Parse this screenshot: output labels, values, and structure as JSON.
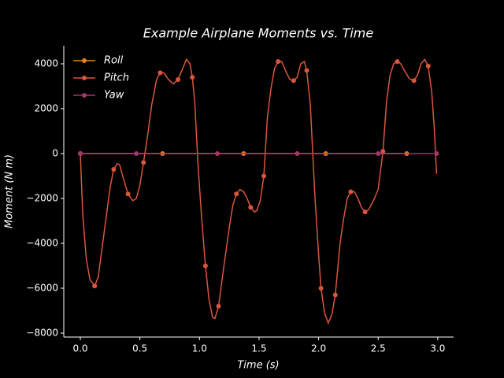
{
  "chart_data": {
    "type": "line",
    "title": "Example Airplane Moments vs. Time",
    "x_label": "Time (s)",
    "y_label": "Moment (N m)",
    "xlim": [
      -0.139,
      3.133
    ],
    "ylim": [
      -8175,
      4807
    ],
    "xticks": [
      {
        "value": 0,
        "label": "0.0"
      },
      {
        "value": 0.5,
        "label": "0.5"
      },
      {
        "value": 1,
        "label": "1.0"
      },
      {
        "value": 1.5,
        "label": "1.5"
      },
      {
        "value": 2,
        "label": "2.0"
      },
      {
        "value": 2.5,
        "label": "2.5"
      },
      {
        "value": 3,
        "label": "3.0"
      }
    ],
    "yticks": [
      {
        "value": -8000,
        "label": "−8000"
      },
      {
        "value": -6000,
        "label": "−6000"
      },
      {
        "value": -4000,
        "label": "−4000"
      },
      {
        "value": -2000,
        "label": "−2000"
      },
      0,
      2000,
      4000
    ],
    "legend": "upper left",
    "series": [
      {
        "name": "Roll",
        "color": "#e8821e",
        "x": [
          0,
          0.69,
          1.37,
          2.06,
          2.74
        ],
        "values": [
          0,
          0,
          0,
          0,
          0
        ]
      },
      {
        "name": "Pitch",
        "color": "#d9563e",
        "x": [
          0,
          0.02,
          0.05,
          0.08,
          0.12,
          0.15,
          0.2,
          0.25,
          0.28,
          0.31,
          0.33,
          0.35,
          0.4,
          0.44,
          0.47,
          0.5,
          0.53,
          0.57,
          0.6,
          0.64,
          0.67,
          0.7,
          0.74,
          0.78,
          0.82,
          0.86,
          0.89,
          0.92,
          0.94,
          0.96,
          0.99,
          1.02,
          1.05,
          1.08,
          1.11,
          1.13,
          1.16,
          1.2,
          1.25,
          1.28,
          1.31,
          1.34,
          1.37,
          1.4,
          1.43,
          1.46,
          1.48,
          1.51,
          1.54,
          1.57,
          1.6,
          1.63,
          1.66,
          1.69,
          1.73,
          1.76,
          1.79,
          1.82,
          1.85,
          1.88,
          1.9,
          1.93,
          1.97,
          2.0,
          2.02,
          2.05,
          2.08,
          2.11,
          2.14,
          2.18,
          2.21,
          2.24,
          2.27,
          2.3,
          2.33,
          2.36,
          2.39,
          2.42,
          2.46,
          2.5,
          2.54,
          2.57,
          2.6,
          2.63,
          2.66,
          2.69,
          2.72,
          2.76,
          2.8,
          2.83,
          2.86,
          2.89,
          2.92,
          2.95,
          2.97,
          2.99
        ],
        "values": [
          0,
          -2700,
          -4700,
          -5600,
          -5900,
          -5500,
          -3500,
          -1500,
          -700,
          -450,
          -500,
          -900,
          -1800,
          -2100,
          -2000,
          -1400,
          -400,
          1000,
          2200,
          3300,
          3600,
          3600,
          3300,
          3100,
          3300,
          3800,
          4200,
          4000,
          3400,
          2300,
          -700,
          -3000,
          -5000,
          -6500,
          -7300,
          -7350,
          -6800,
          -5200,
          -3300,
          -2300,
          -1800,
          -1600,
          -1700,
          -2000,
          -2400,
          -2600,
          -2550,
          -2100,
          -1000,
          1600,
          2900,
          3800,
          4100,
          4100,
          3600,
          3300,
          3250,
          3400,
          4000,
          4100,
          3700,
          2200,
          -2000,
          -4500,
          -6000,
          -7100,
          -7550,
          -7200,
          -6300,
          -4000,
          -2900,
          -2000,
          -1700,
          -1700,
          -2000,
          -2400,
          -2600,
          -2500,
          -2100,
          -1600,
          100,
          2300,
          3500,
          4000,
          4100,
          4000,
          3700,
          3350,
          3250,
          3500,
          4000,
          4200,
          3900,
          2700,
          1200,
          -900
        ]
      },
      {
        "name": "Yaw",
        "color": "#a3366f",
        "x": [
          0,
          0.47,
          1.15,
          1.82,
          2.5,
          2.99
        ],
        "values": [
          0,
          0,
          0,
          0,
          0,
          0
        ]
      }
    ]
  }
}
